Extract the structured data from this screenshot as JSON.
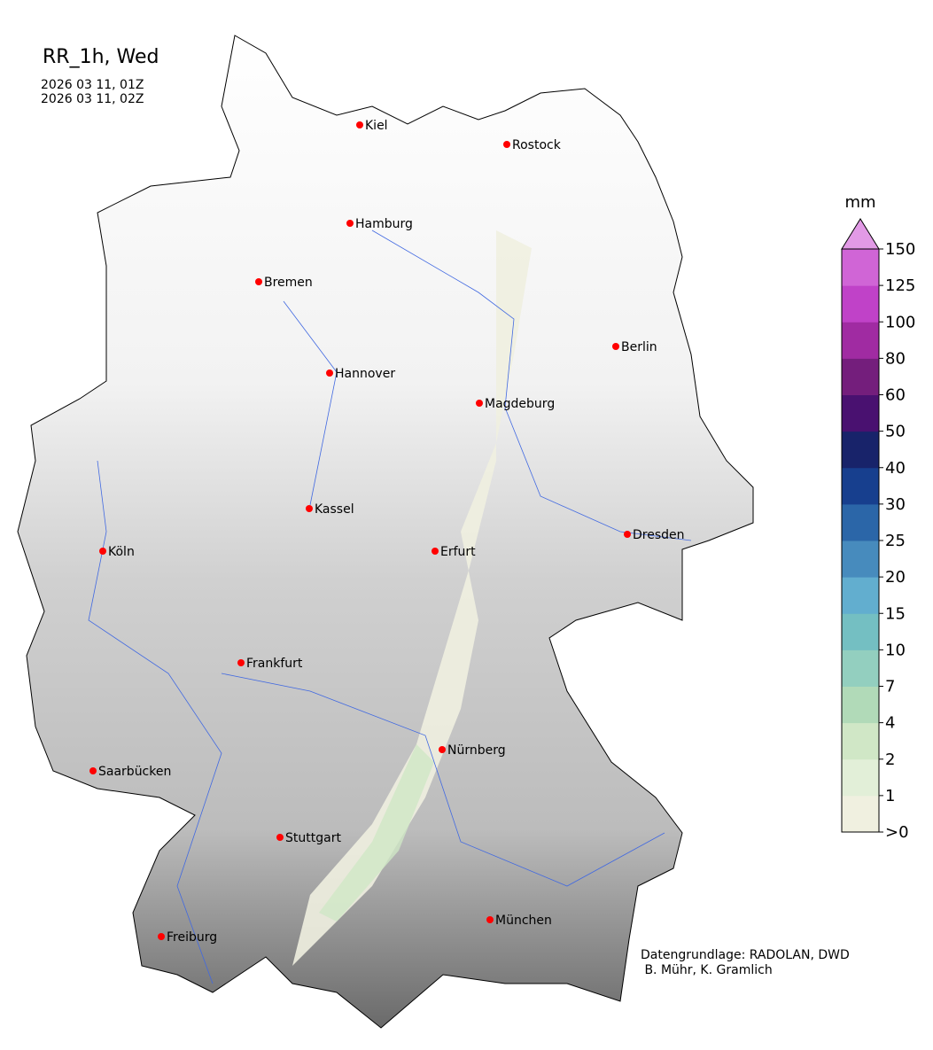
{
  "title": "RR_1h, Wed",
  "time_start": "2026 03 11, 01Z",
  "time_end": "2026 03 11, 02Z",
  "credit_line1": "Datengrundlage: RADOLAN, DWD",
  "credit_line2": " B. Mühr, K. Gramlich",
  "colorbar": {
    "unit": "mm",
    "ticks": [
      ">0",
      "1",
      "2",
      "4",
      "7",
      "10",
      "15",
      "20",
      "25",
      "30",
      "40",
      "50",
      "60",
      "80",
      "100",
      "125",
      "150"
    ],
    "colors": [
      "#f0f0e0",
      "#e2efd8",
      "#d0e7c6",
      "#b1dab8",
      "#93cfbf",
      "#74bfc2",
      "#62aecf",
      "#478bbd",
      "#2b66a8",
      "#173f8e",
      "#18236a",
      "#491170",
      "#741e7c",
      "#a02ba2",
      "#c042c8",
      "#d065d6"
    ],
    "extend_color": "#e29ae6"
  },
  "cities": [
    {
      "name": "Kiel"
    },
    {
      "name": "Rostock"
    },
    {
      "name": "Hamburg"
    },
    {
      "name": "Bremen"
    },
    {
      "name": "Berlin"
    },
    {
      "name": "Hannover"
    },
    {
      "name": "Magdeburg"
    },
    {
      "name": "Kassel"
    },
    {
      "name": "Köln"
    },
    {
      "name": "Erfurt"
    },
    {
      "name": "Dresden"
    },
    {
      "name": "Frankfurt"
    },
    {
      "name": "Nürnberg"
    },
    {
      "name": "Saarbücken"
    },
    {
      "name": "Stuttgart"
    },
    {
      "name": "München"
    },
    {
      "name": "Freiburg"
    }
  ],
  "colors": {
    "city_marker": "#ff0000",
    "rivers": "#4169e1",
    "borders": "#000000"
  }
}
